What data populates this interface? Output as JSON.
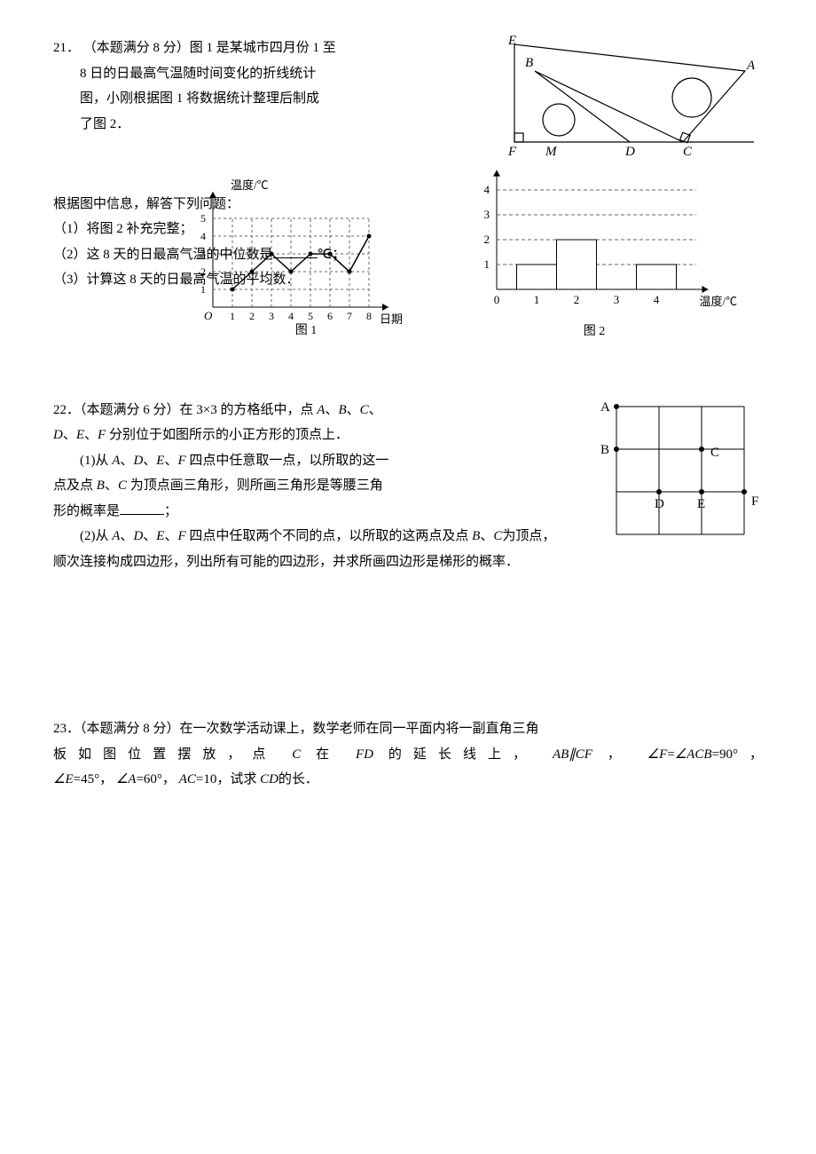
{
  "q21": {
    "num": "21．",
    "points": "（本题满分 8 分）",
    "intro1": "图 1 是某城市四月份 1 至",
    "intro2": "8 日的日最高气温随时间变化的折线统计",
    "intro3": "图，小刚根据图 1 将数据统计整理后制成",
    "intro4": "了图 2．",
    "task_head": "根据图中信息，解答下列问题：",
    "task1": "（1）将图 2 补充完整；",
    "task2_a": "（2）这 8 天的日最高气温的中位数是",
    "task2_b": "℃；",
    "task3": "（3）计算这 8 天的日最高气温的平均数．",
    "chart1": {
      "ylabel": "温度/℃",
      "xlabel": "日期",
      "caption": "图 1",
      "x_ticks": [
        "1",
        "2",
        "3",
        "4",
        "5",
        "6",
        "7",
        "8"
      ],
      "y_ticks": [
        "1",
        "2",
        "3",
        "4",
        "5"
      ],
      "origin": "O",
      "data_y": [
        1,
        2,
        3,
        2,
        3,
        3,
        2,
        4
      ],
      "line_color": "#000",
      "grid_color": "#666",
      "x_range": [
        0,
        9
      ],
      "y_range": [
        0,
        6
      ]
    },
    "chart2": {
      "xlabel": "温度/℃",
      "caption": "图 2",
      "x_ticks": [
        "0",
        "1",
        "2",
        "3",
        "4"
      ],
      "y_ticks": [
        "1",
        "2",
        "3",
        "4"
      ],
      "bars": [
        {
          "x": 1,
          "h": 1
        },
        {
          "x": 2,
          "h": 2
        },
        {
          "x": 4,
          "h": 1
        }
      ],
      "bar_fill": "#ffffff",
      "bar_stroke": "#000",
      "grid_color": "#666"
    },
    "triangle": {
      "labels": {
        "E": "E",
        "B": "B",
        "A": "A",
        "F": "F",
        "M": "M",
        "D": "D",
        "C": "C"
      }
    }
  },
  "q22": {
    "num": "22．",
    "points": "（本题满分 6 分）",
    "l1a": "在 3×3 的方格纸中，点",
    "l1b": "、",
    "l2a": "、",
    "l2b": "、",
    "l2c": "分别位于如图所示的小正方形的顶点上．",
    "p1a": "(1)从",
    "p1b": "、",
    "p1c": "、",
    "p1d": "、",
    "p1e": "四点中任意取一点，以所取的这一",
    "p1f": "点及点",
    "p1g": "、",
    "p1h": "为顶点画三角形，则所画三角形是等腰三角",
    "p1i": "形的概率是",
    "p1j": "；",
    "p2a": "(2)从",
    "p2b": "、",
    "p2c": "、",
    "p2d": "、",
    "p2e": "四点中任取两个不同的点，以所取的这两点及点",
    "p2f": "、",
    "p2g": "为顶点，",
    "p2h": "顺次连接构成四边形，列出所有可能的四边形，并求所画四边形是梯形的概率．",
    "labels": {
      "A": "A",
      "B": "B",
      "C": "C",
      "D": "D",
      "E": "E",
      "F": "F"
    },
    "grid_color": "#000"
  },
  "q23": {
    "num": "23．",
    "points": "（本题满分 8 分）",
    "l1": "在一次数学活动课上，数学老师在同一平面内将一副直角三角",
    "l2a": "板如图位置摆放，点",
    "l2b": "在",
    "l2c": "的延长线上，",
    "l2d": "，",
    "l2e": "=90°，",
    "l3a": "=45°，",
    "l3b": "=60°，",
    "l3c": "=10，试求",
    "l3d": "的长．",
    "vars": {
      "C": "C",
      "FD": "FD",
      "AB": "AB",
      "CF": "CF",
      "angF": "∠F",
      "angACB": "∠ACB",
      "angE": "∠E",
      "angA": "∠A",
      "AC": "AC",
      "CD": "CD",
      "par": "∥"
    }
  }
}
